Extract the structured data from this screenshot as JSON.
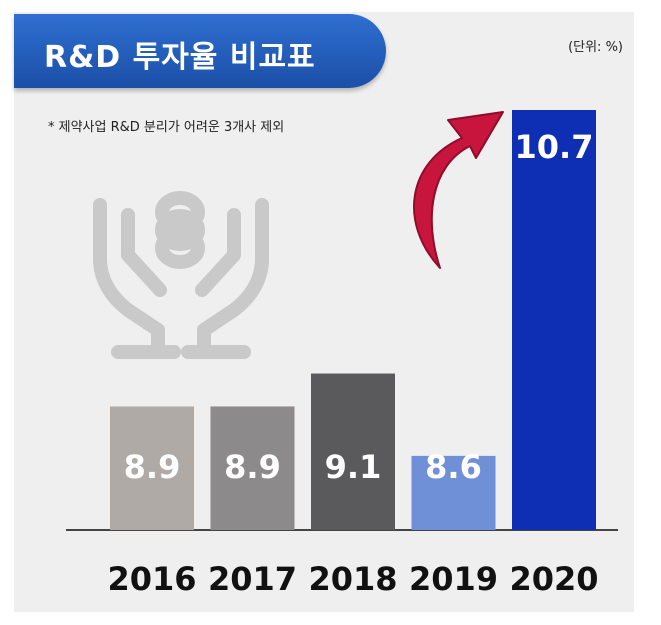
{
  "header": {
    "title": "R&D 투자율 비교표",
    "unit": "(단위: %)",
    "note": "* 제약사업 R&D 분리가 어려운 3개사 제외"
  },
  "icons": [
    "hands-coins-icon",
    "rising-arrow-icon"
  ],
  "colors": {
    "title_bg": "#1f5bb5",
    "bar_2016": "#b0aaa6",
    "bar_2017": "#8c8a8b",
    "bar_2018": "#5a595c",
    "bar_2019": "#6f8fd6",
    "bar_2020": "#0e2fb4",
    "arrow": "#c8153e"
  },
  "chart_data": {
    "type": "bar",
    "categories": [
      "2016",
      "2017",
      "2018",
      "2019",
      "2020"
    ],
    "values": [
      8.9,
      8.9,
      9.1,
      8.6,
      10.7
    ],
    "value_labels": [
      "8.9",
      "8.9",
      "9.1",
      "8.6",
      "10.7"
    ],
    "title": "R&D 투자율 비교표",
    "ylabel": "(단위: %)",
    "ylim": [
      8.15,
      10.7
    ],
    "grid": false,
    "legend": "none"
  }
}
